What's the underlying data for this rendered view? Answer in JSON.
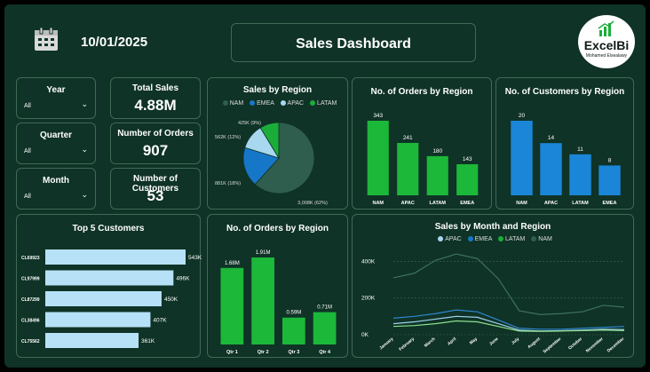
{
  "header": {
    "date": "10/01/2025",
    "title": "Sales Dashboard",
    "logo_text": "ExcelBi",
    "logo_subtext": "Mohamed Elsealawy"
  },
  "slicers": [
    {
      "label": "Year",
      "value": "All"
    },
    {
      "label": "Quarter",
      "value": "All"
    },
    {
      "label": "Month",
      "value": "All"
    }
  ],
  "kpis": [
    {
      "label": "Total Sales",
      "value": "4.88M"
    },
    {
      "label": "Number of Orders",
      "value": "907"
    },
    {
      "label": "Number of Customers",
      "value": "53"
    }
  ],
  "colors": {
    "nam": "#2f5e4e",
    "emea": "#1677c9",
    "apac": "#a8d8f0",
    "latam": "#1aad3a",
    "bar_green": "#1cb839",
    "bar_blue": "#1b86d8",
    "bar_light": "#b7e1f7"
  },
  "chart_data": [
    {
      "type": "pie",
      "title": "Sales by Region",
      "legend": [
        "NAM",
        "EMEA",
        "APAC",
        "LATAM"
      ],
      "labels": [
        "3,008K (62%)",
        "881K (18%)",
        "562K (12%)",
        "425K (9%)"
      ],
      "values": [
        3008,
        881,
        562,
        425
      ]
    },
    {
      "type": "bar",
      "title": "No. of Orders by Region",
      "categories": [
        "NAM",
        "APAC",
        "LATAM",
        "EMEA"
      ],
      "values": [
        343,
        241,
        180,
        143
      ],
      "labels": [
        "343",
        "241",
        "180",
        "143"
      ]
    },
    {
      "type": "bar",
      "title": "No. of Customers by Region",
      "categories": [
        "NAM",
        "APAC",
        "LATAM",
        "EMEA"
      ],
      "values": [
        20,
        14,
        11,
        8
      ],
      "labels": [
        "20",
        "14",
        "11",
        "8"
      ]
    },
    {
      "type": "bar",
      "orientation": "horizontal",
      "title": "Top 5 Customers",
      "categories": [
        "CL69923",
        "CL97999",
        "CL87299",
        "CL38496",
        "CL75562"
      ],
      "values": [
        543,
        496,
        450,
        407,
        361
      ],
      "labels": [
        "543K",
        "496K",
        "450K",
        "407K",
        "361K"
      ]
    },
    {
      "type": "bar",
      "title": "No. of Orders by Region",
      "categories": [
        "Qtr 1",
        "Qtr 2",
        "Qtr 3",
        "Qtr 4"
      ],
      "values": [
        1.68,
        1.91,
        0.59,
        0.71
      ],
      "labels": [
        "1.68M",
        "1.91M",
        "0.59M",
        "0.71M"
      ]
    },
    {
      "type": "line",
      "title": "Sales by Month and Region",
      "legend": [
        "APAC",
        "EMEA",
        "LATAM",
        "NAM"
      ],
      "x": [
        "January",
        "February",
        "March",
        "April",
        "May",
        "June",
        "July",
        "August",
        "September",
        "October",
        "November",
        "December"
      ],
      "ylim": [
        0,
        450
      ],
      "yticks": [
        "0K",
        "200K",
        "400K"
      ],
      "series": [
        {
          "name": "NAM",
          "values": [
            310,
            335,
            405,
            440,
            415,
            305,
            130,
            110,
            115,
            125,
            160,
            150
          ]
        },
        {
          "name": "EMEA",
          "values": [
            90,
            100,
            115,
            135,
            125,
            80,
            35,
            30,
            30,
            35,
            40,
            45
          ]
        },
        {
          "name": "APAC",
          "values": [
            60,
            70,
            85,
            100,
            95,
            60,
            25,
            20,
            22,
            25,
            30,
            28
          ]
        },
        {
          "name": "LATAM",
          "values": [
            45,
            50,
            60,
            75,
            70,
            45,
            20,
            18,
            20,
            22,
            25,
            22
          ]
        }
      ]
    }
  ]
}
